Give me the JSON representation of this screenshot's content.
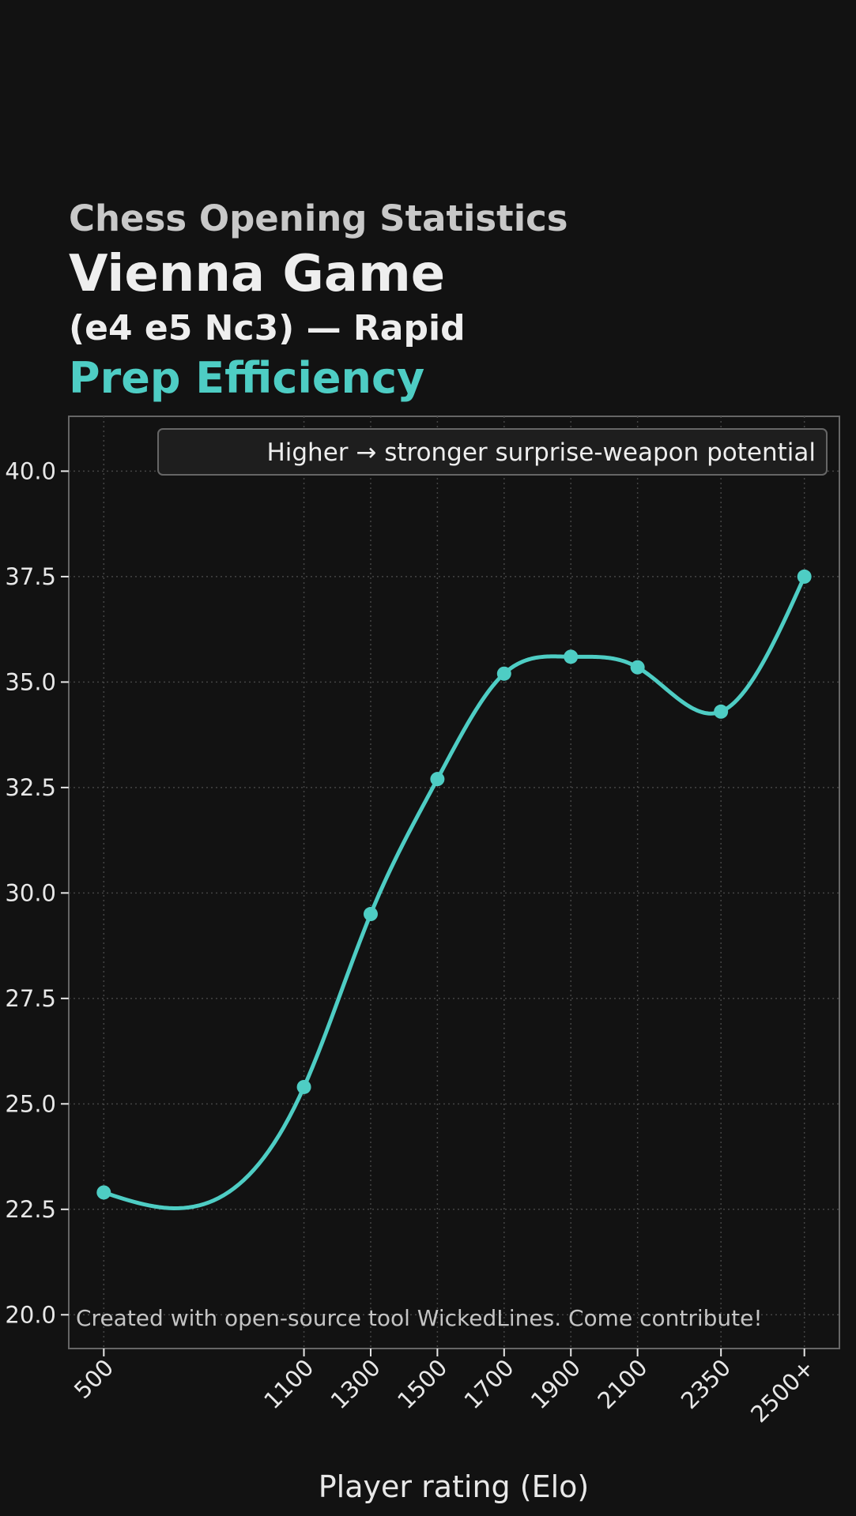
{
  "header": {
    "kicker": "Chess Opening Statistics",
    "opening_name": "Vienna Game",
    "moves_line": "(e4 e5 Nc3) — Rapid",
    "metric_name": "Prep Efficiency"
  },
  "colors": {
    "background": "#121212",
    "plot_background": "#121212",
    "accent": "#4ecdc4",
    "text": "#eeeeee",
    "kicker_text": "#c8c8c8",
    "grid": "#444444",
    "frame": "#666666"
  },
  "chart_data": {
    "type": "line",
    "title": "Prep Efficiency",
    "xlabel": "Player rating (Elo)",
    "ylabel": "",
    "x_scale": "categorical-with-rating-spacing",
    "categories": [
      "500",
      "1100",
      "1300",
      "1500",
      "1700",
      "1900",
      "2100",
      "2350",
      "2500+"
    ],
    "x_positions": [
      500,
      1100,
      1300,
      1500,
      1700,
      1900,
      2100,
      2350,
      2600
    ],
    "xlim": [
      395,
      2705
    ],
    "series": [
      {
        "name": "",
        "values": [
          22.9,
          25.4,
          29.5,
          32.7,
          35.2,
          35.6,
          35.35,
          34.3,
          37.5
        ],
        "smoothed": true,
        "markers": true
      }
    ],
    "ylim": [
      19.2,
      41.3
    ],
    "yticks": [
      "20.0",
      "22.5",
      "25.0",
      "27.5",
      "30.0",
      "32.5",
      "35.0",
      "37.5",
      "40.0"
    ],
    "ytick_values": [
      20.0,
      22.5,
      25.0,
      27.5,
      30.0,
      32.5,
      35.0,
      37.5,
      40.0
    ],
    "grid": true,
    "grid_style": "dotted",
    "legend_position": "upper-right",
    "legend_text": "Higher → stronger surprise-weapon potential",
    "annotation": "Created with open-source tool WickedLines. Come contribute!"
  }
}
